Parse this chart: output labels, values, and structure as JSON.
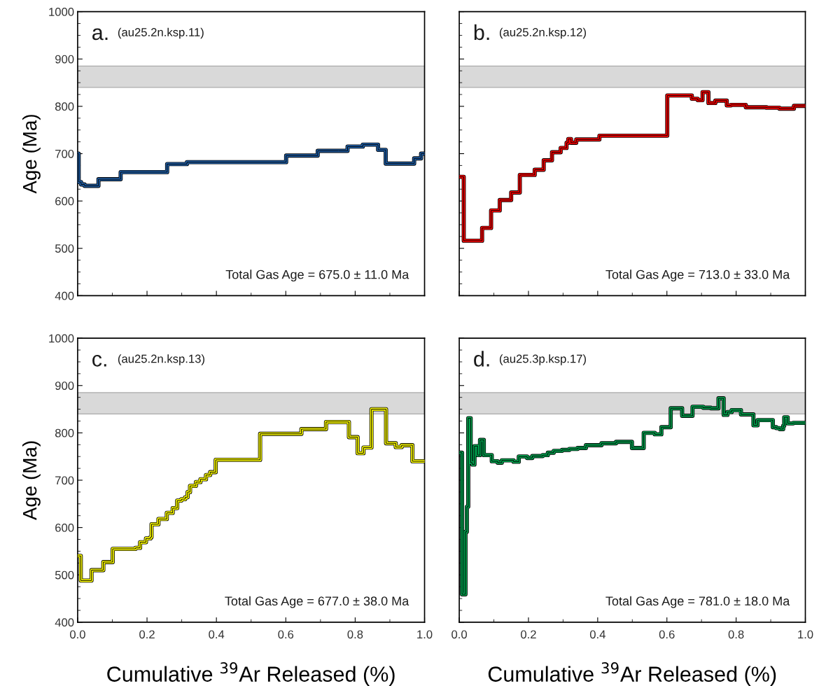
{
  "chart_data": [
    {
      "type": "step",
      "ylabel": "Age (Ma)",
      "annotations": [
        "a.",
        "(au25.2n.ksp.11)",
        "Total Gas Age = 675.0 ± 11.0 Ma"
      ],
      "tick_labels": "y",
      "series": [
        {
          "color": "#1f5fa8",
          "x": [
            0,
            0.003,
            0.01,
            0.02,
            0.06,
            0.124,
            0.258,
            0.315,
            0.601,
            0.692,
            0.752,
            0.778,
            0.822,
            0.866,
            0.888,
            0.97,
            0.99,
            1.0
          ],
          "values": [
            700,
            640,
            635,
            632,
            646,
            661,
            678,
            682,
            696,
            706,
            706,
            715,
            719,
            708,
            679,
            690,
            700,
            700
          ]
        }
      ],
      "xlim": [
        0,
        1
      ],
      "ylim": [
        400,
        1000
      ],
      "xticks": [
        0,
        0.2,
        0.4,
        0.6,
        0.8,
        1
      ],
      "yticks": [
        400,
        500,
        600,
        700,
        800,
        900,
        1000
      ],
      "bands": [
        {
          "axis": "y",
          "from": 840,
          "to": 885,
          "color": "#d9d9d9"
        }
      ]
    },
    {
      "type": "step",
      "annotations": [
        "b.",
        "(au25.2n.ksp.12)",
        "Total Gas Age = 713.0 ± 33.0 Ma"
      ],
      "tick_labels": false,
      "series": [
        {
          "color": "#ff0000",
          "x": [
            0,
            0.013,
            0.066,
            0.092,
            0.117,
            0.15,
            0.175,
            0.218,
            0.244,
            0.268,
            0.293,
            0.31,
            0.315,
            0.323,
            0.338,
            0.405,
            0.601,
            0.672,
            0.689,
            0.703,
            0.72,
            0.74,
            0.773,
            0.785,
            0.828,
            0.888,
            0.925,
            0.967,
            1.0
          ],
          "values": [
            651,
            516,
            543,
            580,
            602,
            618,
            655,
            666,
            686,
            703,
            712,
            723,
            731,
            723,
            730,
            738,
            823,
            816,
            813,
            830,
            807,
            812,
            802,
            803,
            798,
            797,
            795,
            801,
            801
          ]
        }
      ],
      "xlim": [
        0,
        1
      ],
      "ylim": [
        400,
        1000
      ],
      "xticks": [
        0,
        0.2,
        0.4,
        0.6,
        0.8,
        1
      ],
      "yticks": [
        400,
        500,
        600,
        700,
        800,
        900,
        1000
      ],
      "bands": [
        {
          "axis": "y",
          "from": 840,
          "to": 885,
          "color": "#d9d9d9"
        }
      ]
    },
    {
      "type": "step",
      "ylabel": "Age (Ma)",
      "xlabel": "Cumulative $^{39}$Ar Released (%)",
      "annotations": [
        "c.",
        "(au25.2n.ksp.13)",
        "Total Gas Age = 677.0 ± 38.0 Ma"
      ],
      "series": [
        {
          "color": "#ffff00",
          "x": [
            0,
            0.009,
            0.04,
            0.074,
            0.101,
            0.167,
            0.18,
            0.197,
            0.21,
            0.213,
            0.233,
            0.257,
            0.274,
            0.287,
            0.299,
            0.31,
            0.317,
            0.324,
            0.341,
            0.354,
            0.37,
            0.382,
            0.398,
            0.526,
            0.645,
            0.716,
            0.782,
            0.807,
            0.824,
            0.847,
            0.889,
            0.917,
            0.934,
            0.965,
            1.0
          ],
          "values": [
            540,
            488,
            510,
            527,
            555,
            557,
            569,
            577,
            580,
            607,
            618,
            631,
            641,
            657,
            660,
            664,
            675,
            688,
            696,
            702,
            711,
            717,
            743,
            798,
            808,
            823,
            791,
            757,
            769,
            850,
            778,
            770,
            774,
            740,
            740
          ]
        }
      ],
      "xlim": [
        0,
        1
      ],
      "ylim": [
        400,
        1000
      ],
      "xticks": [
        {
          "value": 0,
          "label": "0.0"
        },
        {
          "value": 0.2,
          "label": "0.2"
        },
        {
          "value": 0.4,
          "label": "0.4"
        },
        {
          "value": 0.6,
          "label": "0.6"
        },
        {
          "value": 0.8,
          "label": "0.8"
        },
        {
          "value": 1,
          "label": "1.0"
        }
      ],
      "yticks": [
        400,
        500,
        600,
        700,
        800,
        900,
        1000
      ],
      "bands": [
        {
          "axis": "y",
          "from": 840,
          "to": 885,
          "color": "#d9d9d9"
        }
      ]
    },
    {
      "type": "step",
      "xlabel": "Cumulative $^{39}$Ar Released (%)",
      "annotations": [
        "d.",
        "(au25.3p.ksp.17)",
        "Total Gas Age = 781.0 ± 18.0 Ma"
      ],
      "tick_labels": "x",
      "series": [
        {
          "color": "#00a650",
          "x": [
            0,
            0.008,
            0.018,
            0.022,
            0.026,
            0.033,
            0.038,
            0.044,
            0.053,
            0.06,
            0.071,
            0.094,
            0.111,
            0.123,
            0.157,
            0.172,
            0.196,
            0.211,
            0.241,
            0.256,
            0.273,
            0.297,
            0.318,
            0.342,
            0.366,
            0.411,
            0.453,
            0.499,
            0.533,
            0.565,
            0.584,
            0.611,
            0.644,
            0.674,
            0.705,
            0.727,
            0.749,
            0.764,
            0.775,
            0.787,
            0.814,
            0.85,
            0.862,
            0.906,
            0.916,
            0.926,
            0.936,
            0.939,
            0.949,
            0.965,
            1.0
          ],
          "values": [
            758,
            459,
            591,
            644,
            831,
            737,
            733,
            772,
            753,
            785,
            753,
            740,
            737,
            742,
            739,
            750,
            747,
            751,
            753,
            758,
            762,
            764,
            766,
            768,
            774,
            778,
            781,
            768,
            800,
            797,
            812,
            852,
            836,
            855,
            853,
            852,
            873,
            838,
            844,
            848,
            839,
            816,
            827,
            812,
            810,
            808,
            815,
            833,
            820,
            821,
            821
          ]
        }
      ],
      "xlim": [
        0,
        1
      ],
      "ylim": [
        400,
        1000
      ],
      "xticks": [
        {
          "value": 0,
          "label": "0.0"
        },
        {
          "value": 0.2,
          "label": "0.2"
        },
        {
          "value": 0.4,
          "label": "0.4"
        },
        {
          "value": 0.6,
          "label": "0.6"
        },
        {
          "value": 0.8,
          "label": "0.8"
        },
        {
          "value": 1,
          "label": "1.0"
        }
      ],
      "yticks": [
        400,
        500,
        600,
        700,
        800,
        900,
        1000
      ],
      "bands": [
        {
          "axis": "y",
          "from": 840,
          "to": 885,
          "color": "#d9d9d9"
        }
      ]
    }
  ]
}
